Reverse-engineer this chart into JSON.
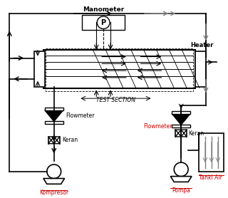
{
  "title": "",
  "bg_color": "#ffffff",
  "line_color": "#000000",
  "red_color": "#cc0000",
  "gray_color": "#888888",
  "labels": {
    "manometer": "Manometer",
    "heater": "Heater",
    "test_section": "TEST SECTION",
    "flowmeter_left": "Flowmeter",
    "flowmeter_right": "Flowmeter",
    "keran_left": "Keran",
    "keran_right": "Keran",
    "kompresor": "Kompresor",
    "pompa": "Pompa",
    "tanki_air": "Tanki Air",
    "P": "P"
  },
  "figsize": [
    3.2,
    2.78
  ],
  "dpi": 100
}
